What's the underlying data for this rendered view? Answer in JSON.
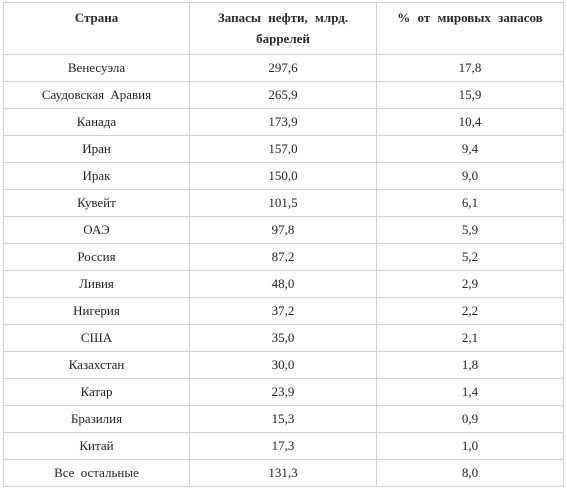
{
  "table": {
    "headers": [
      "Страна",
      "Запасы нефти, млрд. баррелей",
      "% от мировых запасов"
    ],
    "rows": [
      [
        "Венесуэла",
        "297,6",
        "17,8"
      ],
      [
        "Саудовская Аравия",
        "265,9",
        "15,9"
      ],
      [
        "Канада",
        "173,9",
        "10,4"
      ],
      [
        "Иран",
        "157,0",
        "9,4"
      ],
      [
        "Ирак",
        "150,0",
        "9,0"
      ],
      [
        "Кувейт",
        "101,5",
        "6,1"
      ],
      [
        "ОАЭ",
        "97,8",
        "5,9"
      ],
      [
        "Россия",
        "87,2",
        "5,2"
      ],
      [
        "Ливия",
        "48,0",
        "2,9"
      ],
      [
        "Нигерия",
        "37,2",
        "2,2"
      ],
      [
        "США",
        "35,0",
        "2,1"
      ],
      [
        "Казахстан",
        "30,0",
        "1,8"
      ],
      [
        "Катар",
        "23,9",
        "1,4"
      ],
      [
        "Бразилия",
        "15,3",
        "0,9"
      ],
      [
        "Китай",
        "17,3",
        "1,0"
      ],
      [
        "Все остальные",
        "131,3",
        "8,0"
      ]
    ]
  }
}
